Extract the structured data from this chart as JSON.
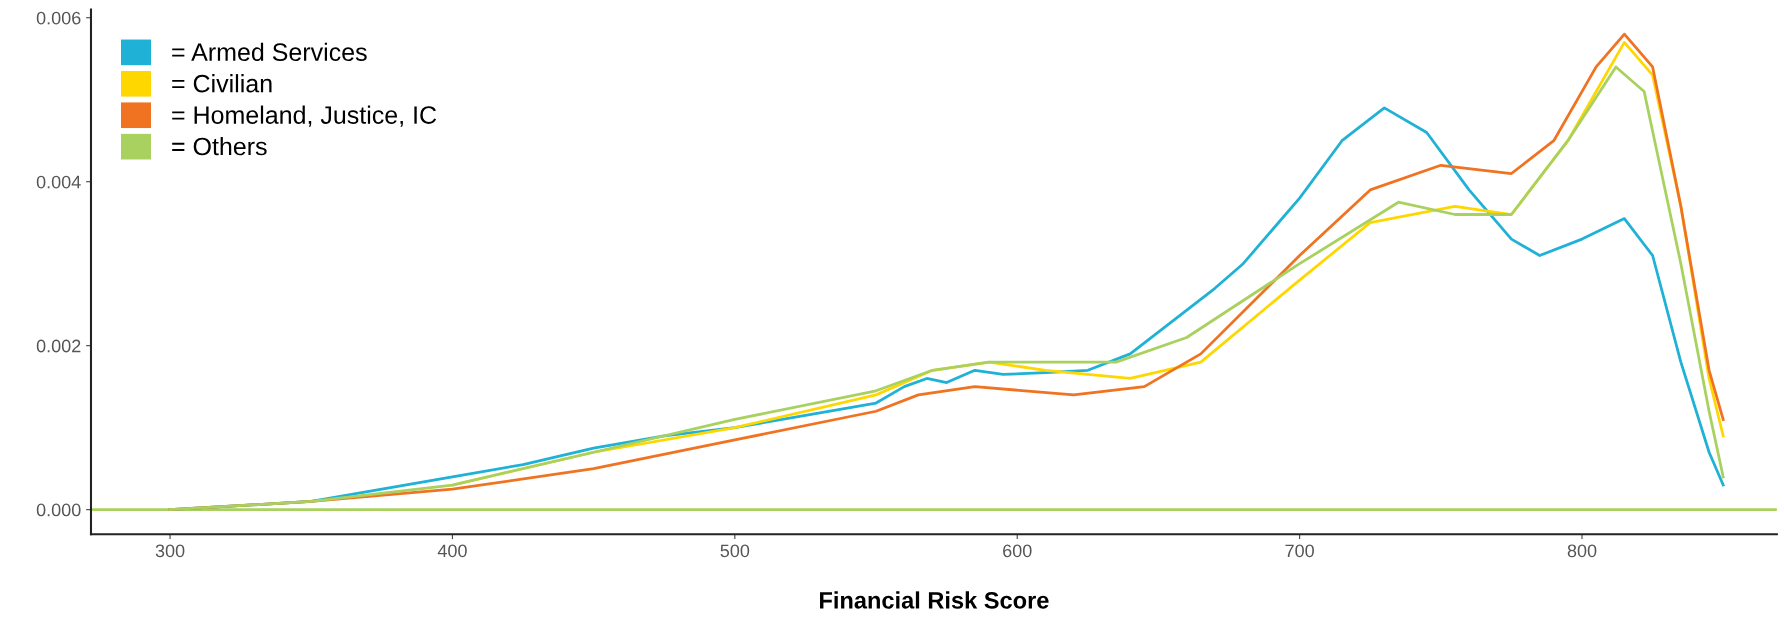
{
  "chart_data": {
    "type": "line",
    "xlabel": "Financial Risk Score",
    "xlim": [
      272,
      869
    ],
    "ylim": [
      -0.0003,
      0.0061
    ],
    "xticks": [
      300,
      400,
      500,
      600,
      700,
      800
    ],
    "yticks": [
      {
        "value": 0,
        "label": "0.000"
      },
      {
        "value": 0.002,
        "label": "0.002"
      },
      {
        "value": 0.004,
        "label": "0.004"
      },
      {
        "value": 0.006,
        "label": "0.006"
      }
    ],
    "ref_lines": [
      {
        "axis": "y",
        "value": 0,
        "color": "#a9d15f"
      }
    ],
    "grid": false,
    "legend": "top left",
    "marker": "none",
    "line_style": "solid",
    "series": [
      {
        "name": "= Armed Services",
        "color": "#1fb1d6",
        "x": [
          300,
          350,
          375,
          400,
          425,
          450,
          475,
          500,
          525,
          550,
          560,
          568,
          575,
          585,
          595,
          610,
          625,
          640,
          655,
          670,
          680,
          700,
          715,
          730,
          745,
          760,
          775,
          785,
          800,
          815,
          825,
          835,
          845,
          850
        ],
        "values": [
          0,
          0.0001,
          0.00025,
          0.0004,
          0.00055,
          0.00075,
          0.0009,
          0.001,
          0.00115,
          0.0013,
          0.0015,
          0.0016,
          0.00155,
          0.0017,
          0.00165,
          0.00167,
          0.0017,
          0.0019,
          0.0023,
          0.0027,
          0.003,
          0.0038,
          0.0045,
          0.0049,
          0.0046,
          0.0039,
          0.0033,
          0.0031,
          0.0033,
          0.00355,
          0.0031,
          0.0018,
          0.0007,
          0.0003
        ]
      },
      {
        "name": "= Civilian",
        "color": "#ffd700",
        "x": [
          400,
          450,
          500,
          550,
          570,
          590,
          610,
          640,
          665,
          700,
          725,
          755,
          775,
          795,
          815,
          825,
          835,
          845,
          850
        ],
        "values": [
          0.0003,
          0.0007,
          0.001,
          0.0014,
          0.0017,
          0.0018,
          0.0017,
          0.0016,
          0.0018,
          0.0028,
          0.0035,
          0.0037,
          0.0036,
          0.0045,
          0.0057,
          0.0053,
          0.0037,
          0.0016,
          0.0009
        ]
      },
      {
        "name": "= Homeland, Justice, IC",
        "color": "#f07322",
        "x": [
          300,
          350,
          400,
          450,
          500,
          550,
          565,
          585,
          620,
          645,
          665,
          700,
          725,
          750,
          775,
          790,
          805,
          815,
          825,
          835,
          845,
          850
        ],
        "values": [
          0,
          0.0001,
          0.00025,
          0.0005,
          0.00085,
          0.0012,
          0.0014,
          0.0015,
          0.0014,
          0.0015,
          0.0019,
          0.0031,
          0.0039,
          0.0042,
          0.0041,
          0.0045,
          0.0054,
          0.0058,
          0.0054,
          0.0037,
          0.0017,
          0.0011
        ]
      },
      {
        "name": "= Others",
        "color": "#a9d15f",
        "x": [
          300,
          350,
          400,
          450,
          500,
          550,
          570,
          590,
          610,
          635,
          660,
          700,
          735,
          755,
          775,
          795,
          812,
          822,
          835,
          845,
          850
        ],
        "values": [
          0,
          0.0001,
          0.0003,
          0.0007,
          0.0011,
          0.00145,
          0.0017,
          0.0018,
          0.0018,
          0.0018,
          0.0021,
          0.003,
          0.00375,
          0.0036,
          0.0036,
          0.0045,
          0.0054,
          0.0051,
          0.003,
          0.0012,
          0.0004
        ]
      }
    ]
  }
}
